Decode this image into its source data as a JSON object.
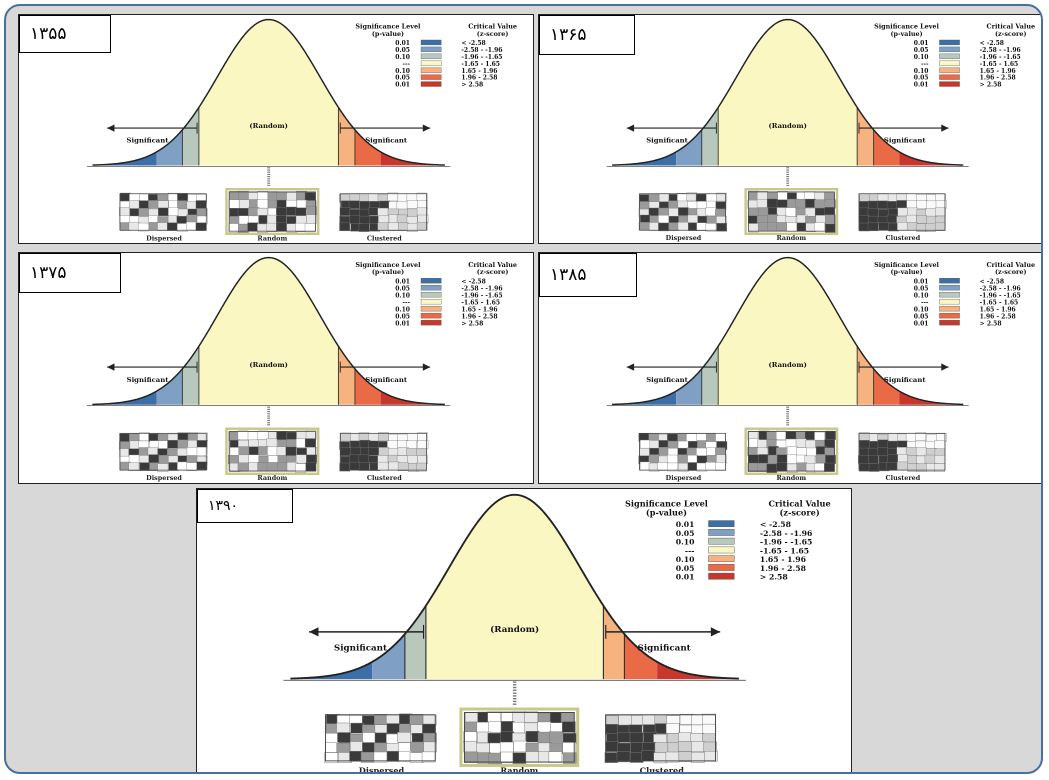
{
  "legend": {
    "sig_title": "Significance Level",
    "sig_sub": "(p-value)",
    "crit_title": "Critical Value",
    "crit_sub": "(z-score)",
    "rows": [
      {
        "p": "0.01",
        "z": "< -2.58",
        "color": "#3c6ea8"
      },
      {
        "p": "0.05",
        "z": "-2.58 - -1.96",
        "color": "#7f9fc4"
      },
      {
        "p": "0.10",
        "z": "-1.96 - -1.65",
        "color": "#b9c8bd"
      },
      {
        "p": "---",
        "z": "-1.65 - 1.65",
        "color": "#fbf7c2"
      },
      {
        "p": "0.10",
        "z": "1.65 - 1.96",
        "color": "#f6b27f"
      },
      {
        "p": "0.05",
        "z": "1.96 - 2.58",
        "color": "#ea6a45"
      },
      {
        "p": "0.01",
        "z": "> 2.58",
        "color": "#c9362b"
      }
    ]
  },
  "labels": {
    "significant_left": "Significant",
    "significant_right": "Significant",
    "random": "(Random)",
    "dispersed": "Dispersed",
    "random_map": "Random",
    "clustered": "Clustered"
  },
  "panels": [
    {
      "year": "۱۳۵۵"
    },
    {
      "year": "۱۳۶۵"
    },
    {
      "year": "۱۳۷۵"
    },
    {
      "year": "۱۳۸۵"
    },
    {
      "year": "۱۳۹۰"
    }
  ],
  "colors": {
    "frame_border": "#4a6f9c",
    "frame_bg": "#d8d8d8",
    "curve_fill": "#fbf7c2",
    "map_dark": "#3a3a3a",
    "map_mid": "#9a9a9a",
    "map_light": "#e8e8e8",
    "random_frame": "#c8c88a"
  }
}
